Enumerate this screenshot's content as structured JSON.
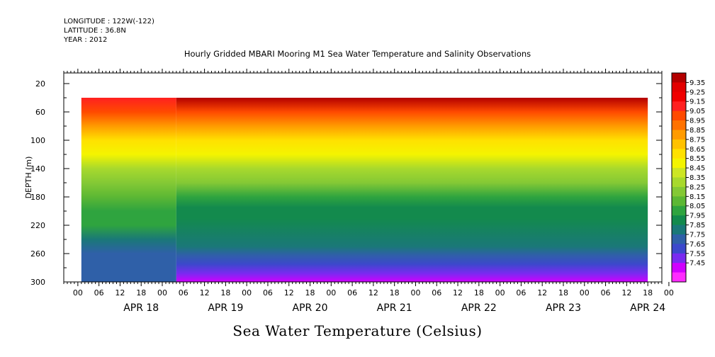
{
  "header": {
    "longitude": "LONGITUDE : 122W(-122)",
    "latitude": "LATITUDE : 36.8N",
    "year": "YEAR : 2012",
    "title": "Hourly Gridded MBARI Mooring M1 Sea Water Temperature and Salinity Observations",
    "footer_title": "Sea Water Temperature (Celsius)"
  },
  "chart_data": {
    "type": "heatmap",
    "title": "Hourly Gridded MBARI Mooring M1 Sea Water Temperature and Salinity Observations",
    "subtitle": "Sea Water Temperature (Celsius)",
    "ylabel": "DEPTH (m)",
    "xlabel": "",
    "y_reversed": true,
    "ylim": [
      300,
      5
    ],
    "y_ticks": [
      20,
      60,
      100,
      140,
      180,
      220,
      260,
      300
    ],
    "x_range_hours": [
      -10,
      160
    ],
    "x_tick_labels": [
      "00",
      "06",
      "12",
      "18",
      "00",
      "06",
      "12",
      "18",
      "00",
      "06",
      "12",
      "18",
      "00",
      "06",
      "12",
      "18",
      "00",
      "06",
      "12",
      "18",
      "00",
      "06",
      "12",
      "18",
      "00",
      "06",
      "12",
      "18",
      "00"
    ],
    "x_day_labels": [
      "APR 18",
      "APR 19",
      "APR 20",
      "APR 21",
      "APR 22",
      "APR 23",
      "APR 24"
    ],
    "data_extent": {
      "hours": [
        -5,
        156
      ],
      "depth": [
        40,
        300
      ]
    },
    "segments": [
      {
        "hours": [
          -5,
          22
        ],
        "profile": [
          {
            "depth": 40,
            "value": 9.22
          },
          {
            "depth": 60,
            "value": 9.05
          },
          {
            "depth": 80,
            "value": 8.88
          },
          {
            "depth": 100,
            "value": 8.74
          },
          {
            "depth": 120,
            "value": 8.55
          },
          {
            "depth": 140,
            "value": 8.4
          },
          {
            "depth": 160,
            "value": 8.3
          },
          {
            "depth": 180,
            "value": 8.22
          },
          {
            "depth": 200,
            "value": 8.14
          },
          {
            "depth": 220,
            "value": 8.06
          },
          {
            "depth": 240,
            "value": 7.88
          },
          {
            "depth": 260,
            "value": 7.8
          },
          {
            "depth": 280,
            "value": 7.78
          },
          {
            "depth": 300,
            "value": 7.77
          }
        ]
      },
      {
        "hours": [
          22,
          156
        ],
        "profile": [
          {
            "depth": 40,
            "value": 9.38
          },
          {
            "depth": 60,
            "value": 9.1
          },
          {
            "depth": 80,
            "value": 8.86
          },
          {
            "depth": 100,
            "value": 8.72
          },
          {
            "depth": 120,
            "value": 8.55
          },
          {
            "depth": 140,
            "value": 8.4
          },
          {
            "depth": 160,
            "value": 8.26
          },
          {
            "depth": 180,
            "value": 8.12
          },
          {
            "depth": 195,
            "value": 7.99
          },
          {
            "depth": 210,
            "value": 7.95
          },
          {
            "depth": 250,
            "value": 7.94
          },
          {
            "depth": 262,
            "value": 7.8
          },
          {
            "depth": 275,
            "value": 7.68
          },
          {
            "depth": 288,
            "value": 7.55
          },
          {
            "depth": 300,
            "value": 7.45
          }
        ]
      }
    ],
    "colorbar": {
      "levels": [
        "9.35",
        "9.25",
        "9.15",
        "9.05",
        "8.95",
        "8.85",
        "8.75",
        "8.65",
        "8.55",
        "8.45",
        "8.35",
        "8.25",
        "8.15",
        "8.05",
        "7.95",
        "7.85",
        "7.75",
        "7.65",
        "7.55",
        "7.45"
      ],
      "colors": [
        "#e30000",
        "#f00000",
        "#ff2020",
        "#ff4a00",
        "#ff7200",
        "#ff9b00",
        "#ffc200",
        "#ffe100",
        "#f4f400",
        "#cde624",
        "#a8d92d",
        "#84c935",
        "#5cb834",
        "#2fa43f",
        "#138a4d",
        "#1a7878",
        "#2f60a8",
        "#3c48cc",
        "#7a2af0",
        "#d000ff",
        "#ff2cff"
      ],
      "top_color": "#b30000"
    }
  }
}
